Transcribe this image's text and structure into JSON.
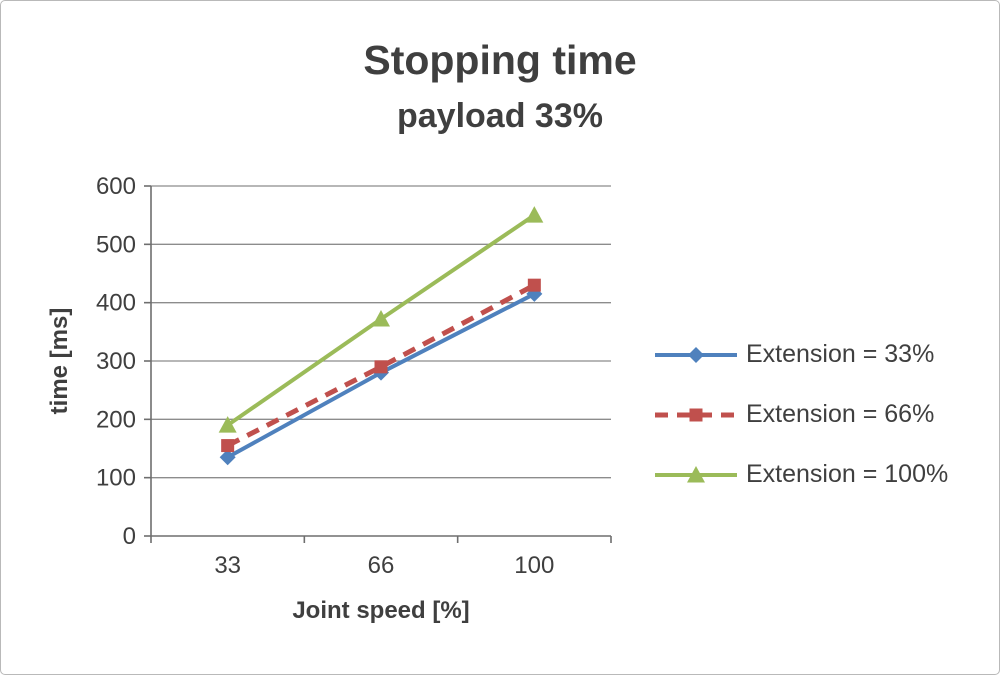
{
  "chart_data": {
    "type": "line",
    "title": "Stopping time",
    "subtitle": "payload 33%",
    "xlabel": "Joint speed [%]",
    "ylabel": "time [ms]",
    "categories": [
      "33",
      "66",
      "100"
    ],
    "series": [
      {
        "name": "Extension = 33%",
        "values": [
          135,
          280,
          415
        ],
        "color": "#4F81BD",
        "marker": "diamond",
        "dash": "solid"
      },
      {
        "name": "Extension = 66%",
        "values": [
          155,
          290,
          430
        ],
        "color": "#C0504D",
        "marker": "square",
        "dash": "dashed"
      },
      {
        "name": "Extension = 100%",
        "values": [
          190,
          372,
          550
        ],
        "color": "#9BBB59",
        "marker": "triangle",
        "dash": "solid"
      }
    ],
    "ylim": [
      0,
      600
    ],
    "ytick_step": 100,
    "grid": true,
    "legend_position": "right",
    "text_color": "#3f3f3f",
    "grid_color": "#8c8c8c",
    "axis_color": "#6e6e6e"
  }
}
